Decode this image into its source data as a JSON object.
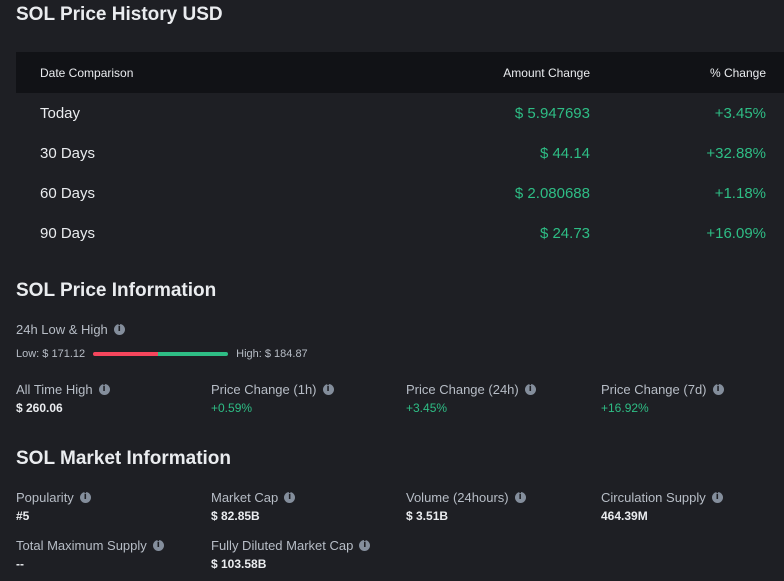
{
  "history": {
    "title": "SOL Price History USD",
    "headers": {
      "date": "Date Comparison",
      "amount": "Amount Change",
      "pct": "% Change"
    },
    "rows": [
      {
        "date": "Today",
        "amount": "$ 5.947693",
        "pct": "+3.45%"
      },
      {
        "date": "30 Days",
        "amount": "$ 44.14",
        "pct": "+32.88%"
      },
      {
        "date": "60 Days",
        "amount": "$ 2.080688",
        "pct": "+1.18%"
      },
      {
        "date": "90 Days",
        "amount": "$ 24.73",
        "pct": "+16.09%"
      }
    ]
  },
  "price_info": {
    "title": "SOL Price Information",
    "low_high_label": "24h Low & High",
    "low": "Low: $ 171.12",
    "high": "High: $ 184.87",
    "stats": [
      {
        "label": "All Time High",
        "value": "$ 260.06"
      },
      {
        "label": "Price Change (1h)",
        "value": "+0.59%"
      },
      {
        "label": "Price Change (24h)",
        "value": "+3.45%"
      },
      {
        "label": "Price Change (7d)",
        "value": "+16.92%"
      }
    ]
  },
  "market_info": {
    "title": "SOL Market Information",
    "stats": [
      {
        "label": "Popularity",
        "value": "#5"
      },
      {
        "label": "Market Cap",
        "value": "$ 82.85B"
      },
      {
        "label": "Volume (24hours)",
        "value": "$ 3.51B"
      },
      {
        "label": "Circulation Supply",
        "value": "464.39M"
      },
      {
        "label": "Total Maximum Supply",
        "value": "--"
      },
      {
        "label": "Fully Diluted Market Cap",
        "value": "$ 103.58B"
      }
    ]
  },
  "icons": {
    "info": "i"
  },
  "colors": {
    "positive": "#2ebd85",
    "negative": "#f6465d",
    "background": "#1e1f24",
    "header_bg": "#111216"
  }
}
